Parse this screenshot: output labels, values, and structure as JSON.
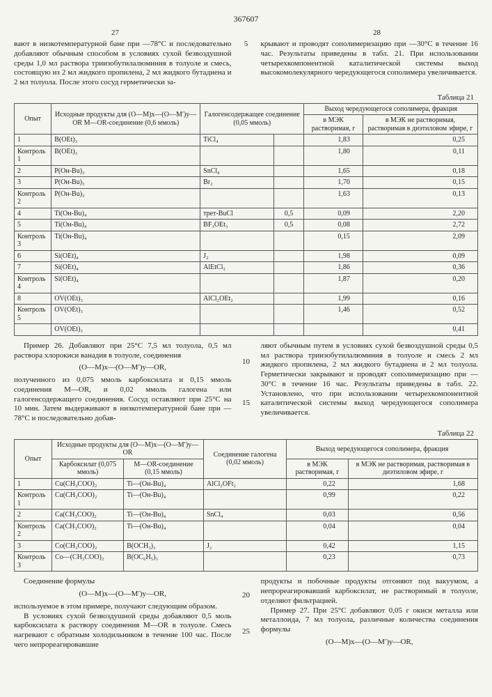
{
  "doc_number": "367607",
  "left_page": "27",
  "right_page": "28",
  "intro_left": "вают в низкотемпературной бане при —78°С и последовательно добавляют обычным способом в условиях сухой безвоздушной среды 1,0 мл раствора триизобутилалюминия в толуоле и смесь, состоящую из 2 мл жидкого пропилена, 2 мл жидкого бутадиена и 2 мл толуола. После этого сосуд герметически за-",
  "intro_right": "крывают и проводят сополимеризацию при —30°С в течение 16 час. Результаты приведены в табл. 21. При использовании четырехкомпонентной каталитической системы выход высокомолекулярного чередующегося сополимера увеличивается.",
  "margin_5": "5",
  "table21_label": "Таблица 21",
  "t21": {
    "h_opyt": "Опыт",
    "h_src": "Исходные продукты для (O—M)x—(O—M′)y—OR M—OR-соединение (0,6 ммоль)",
    "h_halo": "Галогенсодержащее соединение (0,05 ммоль)",
    "h_yield": "Выход чередующегося сополимера, фракция",
    "h_mek1": "в МЭК растворимая, г",
    "h_mek2": "в МЭК не растворимая, растворимая в диэтиловом эфире, г",
    "rows": [
      {
        "o": "1",
        "s": "B(OEt)₃",
        "h": "TiCl₄",
        "c": "",
        "m1": "1,83",
        "m2": "0,25"
      },
      {
        "o": "Контроль 1",
        "s": "B(OEt)₃",
        "h": "",
        "c": "",
        "m1": "1,80",
        "m2": "0,11"
      },
      {
        "o": "2",
        "s": "P(Oн-Bu)₃",
        "h": "SnCl₄",
        "c": "",
        "m1": "1,65",
        "m2": "0,18"
      },
      {
        "o": "3",
        "s": "P(Oн-Bu)₃",
        "h": "Br₂",
        "c": "",
        "m1": "1,70",
        "m2": "0,15"
      },
      {
        "o": "Контроль 2",
        "s": "P(Oн-Bu)₃",
        "h": "",
        "c": "",
        "m1": "1,63",
        "m2": "0,13"
      },
      {
        "o": "4",
        "s": "Ti(Oн-Bu)₄",
        "h": "трет-BuCl",
        "c": "0,5",
        "m1": "0,09",
        "m2": "2,20"
      },
      {
        "o": "5",
        "s": "Ti(Oн-Bu)₄",
        "h": "BF₃OEt₃",
        "c": "0,5",
        "m1": "0,08",
        "m2": "2,72"
      },
      {
        "o": "Контроль 3",
        "s": "Ti(Oн-Bu)₄",
        "h": "",
        "c": "",
        "m1": "0,15",
        "m2": "2,09"
      },
      {
        "o": "6",
        "s": "Si(OEt)₄",
        "h": "J₂",
        "c": "",
        "m1": "1,98",
        "m2": "0,09"
      },
      {
        "o": "7",
        "s": "Si(OEt)₄",
        "h": "AlEtCl₂",
        "c": "",
        "m1": "1,86",
        "m2": "0,36"
      },
      {
        "o": "Контроль 4",
        "s": "Si(OEt)₄",
        "h": "",
        "c": "",
        "m1": "1,87",
        "m2": "0,20"
      },
      {
        "o": "8",
        "s": "OV(OEt)₃",
        "h": "AlCl₂OEt₂",
        "c": "",
        "m1": "1,99",
        "m2": "0,16"
      },
      {
        "o": "Контроль 5",
        "s": "OV(OEt)₃",
        "h": "",
        "c": "",
        "m1": "1,46",
        "m2": "0,52"
      },
      {
        "o": "",
        "s": "OV(OEt)₃",
        "h": "",
        "c": "",
        "m1": "",
        "m2": "0,41"
      }
    ]
  },
  "mid_left_1": "Пример 26. Добавляют при 25°С 7,5 мл толуола, 0,5 мл раствора хлорокиси ванадия в толуоле, соединения",
  "formula1": "(O—M)x—(O—M′)y—OR,",
  "mid_left_2": "полученного из 0,075 ммоль карбоксилата и 0,15 ммоль соединения M—OR, и 0,02 ммоль галогена или галогенсодержащего соединения. Сосуд оставляют при 25°С на 10 мин. Затем выдерживают в низкотемпературной бане при —78°С и последовательно добав-",
  "margin_10": "10",
  "margin_15": "15",
  "mid_right": "ляют обычным путем в условиях сухой безвоздушной среды 0,5 мл раствора триизобутилалюминия в толуоле и смесь 2 мл жидкого пропилена, 2 мл жидкого бутадиена и 2 мл толуола. Герметически закрывают и проводят сополимеризацию при —30°С в течение 16 час. Результаты приведены в табл. 22. Установлено, что при использовании четырехкомпонентной каталитической системы выход чередующегося сополимера увеличивается.",
  "table22_label": "Таблица 22",
  "t22": {
    "h_opyt": "Опыт",
    "h_src": "Исходные продукты для (O—M)x—(O—M′)y—OR",
    "h_carb": "Карбоксилат (0,075 ммоль)",
    "h_mor": "M—OR-соединение (0,15 ммоль)",
    "h_hal": "Соединение галогена (0,02 ммоль)",
    "h_yield": "Выход чередующегося сополимера, фракция",
    "h_mek1": "в МЭК растворимая, г",
    "h_mek2": "в МЭК не растворимая, растворимая в диэтиловом эфире, г",
    "rows": [
      {
        "o": "1",
        "c": "Cu(CH₃COO)₂",
        "m": "Ti—(Oн-Bu)₄",
        "h": "AlCl₂OFt₂",
        "m1": "0,22",
        "m2": "1,68"
      },
      {
        "o": "Контроль 1",
        "c": "Cu(CH₃COO)₂",
        "m": "Ti—(Oн-Bu)₄",
        "h": "",
        "m1": "0,99",
        "m2": "0,22"
      },
      {
        "o": "2",
        "c": "Ca(CH₃COO)₂",
        "m": "Ti—(Oн-Bu)₄",
        "h": "SnCl₄",
        "m1": "0,03",
        "m2": "0,56"
      },
      {
        "o": "Контроль 2",
        "c": "Ca(CH₃COO)₂",
        "m": "Ti—(Oн-Bu)₄",
        "h": "",
        "m1": "0,04",
        "m2": "0,04"
      },
      {
        "o": "3",
        "c": "Co(CH₃COO)₂",
        "m": "B(OCH₃)₃",
        "h": "J₂",
        "m1": "0,42",
        "m2": "1,15"
      },
      {
        "o": "Контроль 3",
        "c": "Co—(CH₃COO)₂",
        "m": "B(OC₆H₅)₃",
        "h": "",
        "m1": "0,23",
        "m2": "0,73"
      }
    ]
  },
  "bot_left_1": "Соединение формулы",
  "formula2": "(O—M)x—(O—M′)y—OR,",
  "bot_left_2": "используемое в этом примере, получают следующим образом.",
  "bot_left_3": "В условиях сухой безвоздушной среды добавляют 0,5 моль карбоксилата к раствору соединения M—OR в толуоле. Смесь нагревают с обратным холодильником в течение 100 час. После чего непрореагировавшие",
  "margin_20": "20",
  "margin_25": "25",
  "bot_right_1": "продукты и побочные продукты отгоняют под вакуумом, а непрореагировавший карбоксилат, не растворимый в толуоле, отделяют фильтрацией.",
  "bot_right_2": "Пример 27. При 25°С добавляют 0,05 г окиси металла или металлоида, 7 мл толуола, различные количества соединения формулы",
  "formula3": "(O—M)x—(O—M′)y—OR,"
}
